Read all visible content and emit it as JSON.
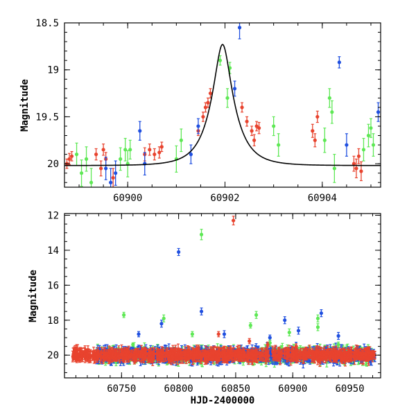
{
  "chart_data": [
    {
      "name": "zoom-panel",
      "type": "scatter",
      "title": "",
      "xlabel": "",
      "ylabel": "Magnitude",
      "xlim": [
        60898.7,
        60905.2
      ],
      "ylim": [
        20.25,
        18.5
      ],
      "y_inverted": true,
      "x_ticks": [
        60900,
        60902,
        60904
      ],
      "x_tick_labels": [
        "60900",
        "60902",
        "60904"
      ],
      "y_ticks": [
        18.5,
        19,
        19.5,
        20
      ],
      "y_tick_labels": [
        "18.5",
        "19",
        "19.5",
        "20"
      ],
      "model_curve": {
        "type": "single-lens microlensing",
        "color": "#000000",
        "t0": 60901.95,
        "peak_mag": 18.73,
        "base_mag": 20.02,
        "tE": 0.47
      },
      "series": [
        {
          "name": "red",
          "color": "#e8432e",
          "points": [
            [
              60898.75,
              20.0,
              0.05
            ],
            [
              60898.8,
              19.95,
              0.06
            ],
            [
              60898.85,
              19.92,
              0.05
            ],
            [
              60899.35,
              19.9,
              0.06
            ],
            [
              60899.45,
              20.05,
              0.08
            ],
            [
              60899.5,
              19.85,
              0.06
            ],
            [
              60899.55,
              19.95,
              0.07
            ],
            [
              60899.7,
              20.15,
              0.1
            ],
            [
              60900.35,
              19.9,
              0.07
            ],
            [
              60900.45,
              19.85,
              0.06
            ],
            [
              60900.55,
              19.9,
              0.06
            ],
            [
              60900.65,
              19.88,
              0.06
            ],
            [
              60900.7,
              19.82,
              0.05
            ],
            [
              60901.45,
              19.65,
              0.05
            ],
            [
              60901.55,
              19.5,
              0.05
            ],
            [
              60901.6,
              19.4,
              0.05
            ],
            [
              60901.65,
              19.35,
              0.05
            ],
            [
              60901.7,
              19.25,
              0.05
            ],
            [
              60902.35,
              19.4,
              0.05
            ],
            [
              60902.45,
              19.55,
              0.05
            ],
            [
              60902.55,
              19.65,
              0.05
            ],
            [
              60902.6,
              19.75,
              0.06
            ],
            [
              60902.65,
              19.6,
              0.05
            ],
            [
              60902.7,
              19.62,
              0.06
            ],
            [
              60903.8,
              19.65,
              0.07
            ],
            [
              60903.85,
              19.75,
              0.07
            ],
            [
              60903.9,
              19.5,
              0.06
            ],
            [
              60904.65,
              20.0,
              0.08
            ],
            [
              60904.7,
              20.05,
              0.1
            ],
            [
              60904.75,
              19.92,
              0.08
            ],
            [
              60904.8,
              20.08,
              0.1
            ]
          ]
        },
        {
          "name": "green",
          "color": "#5ee855",
          "points": [
            [
              60898.95,
              19.9,
              0.12
            ],
            [
              60899.05,
              20.1,
              0.14
            ],
            [
              60899.15,
              19.95,
              0.13
            ],
            [
              60899.25,
              20.2,
              0.15
            ],
            [
              60899.85,
              19.95,
              0.12
            ],
            [
              60899.95,
              19.85,
              0.12
            ],
            [
              60900.0,
              20.0,
              0.14
            ],
            [
              60900.05,
              19.85,
              0.1
            ],
            [
              60901.0,
              19.95,
              0.14
            ],
            [
              60901.1,
              19.75,
              0.12
            ],
            [
              60901.9,
              18.9,
              0.05
            ],
            [
              60902.05,
              19.3,
              0.1
            ],
            [
              60902.1,
              18.98,
              0.06
            ],
            [
              60903.0,
              19.6,
              0.1
            ],
            [
              60903.1,
              19.8,
              0.12
            ],
            [
              60904.05,
              19.75,
              0.13
            ],
            [
              60904.15,
              19.3,
              0.1
            ],
            [
              60904.2,
              19.45,
              0.12
            ],
            [
              60904.25,
              20.05,
              0.15
            ],
            [
              60904.85,
              19.85,
              0.12
            ],
            [
              60904.95,
              19.7,
              0.12
            ],
            [
              60905.0,
              19.62,
              0.1
            ],
            [
              60905.05,
              19.8,
              0.12
            ]
          ]
        },
        {
          "name": "blue",
          "color": "#1f4fe0",
          "points": [
            [
              60899.55,
              20.05,
              0.12
            ],
            [
              60899.65,
              20.2,
              0.15
            ],
            [
              60899.75,
              20.1,
              0.13
            ],
            [
              60900.25,
              19.65,
              0.1
            ],
            [
              60900.35,
              20.0,
              0.12
            ],
            [
              60901.3,
              19.9,
              0.1
            ],
            [
              60901.45,
              19.6,
              0.08
            ],
            [
              60902.2,
              19.2,
              0.08
            ],
            [
              60902.3,
              18.55,
              0.12
            ],
            [
              60904.35,
              18.92,
              0.06
            ],
            [
              60904.5,
              19.8,
              0.12
            ],
            [
              60905.15,
              19.45,
              0.1
            ]
          ]
        }
      ]
    },
    {
      "name": "full-panel",
      "type": "scatter",
      "title": "",
      "xlabel": "HJD-2400000",
      "ylabel": "Magnitude",
      "xlim": [
        60700,
        60977
      ],
      "ylim": [
        21.3,
        11.9
      ],
      "y_inverted": true,
      "x_ticks": [
        60750,
        60800,
        60850,
        60900,
        60950
      ],
      "x_tick_labels": [
        "60750",
        "60800",
        "60850",
        "60900",
        "60950"
      ],
      "y_ticks": [
        12,
        14,
        16,
        18,
        20
      ],
      "y_tick_labels": [
        "12",
        "14",
        "16",
        "18",
        "20"
      ],
      "dense_baseline": {
        "x_start": 60728,
        "x_end": 60972,
        "mag": 20.0,
        "scatter": 0.4,
        "red_start": 60707
      },
      "series": [
        {
          "name": "blue",
          "color": "#1f4fe0",
          "points": [
            [
              60800,
              14.1,
              0.2
            ],
            [
              60785,
              18.2,
              0.2
            ],
            [
              60820,
              17.5,
              0.2
            ],
            [
              60840,
              18.8,
              0.2
            ],
            [
              60880,
              19.0,
              0.15
            ],
            [
              60893,
              18.0,
              0.2
            ],
            [
              60905,
              18.6,
              0.2
            ],
            [
              60925,
              17.6,
              0.2
            ],
            [
              60765,
              18.8,
              0.15
            ],
            [
              60940,
              18.9,
              0.2
            ]
          ]
        },
        {
          "name": "green",
          "color": "#5ee855",
          "points": [
            [
              60820,
              13.1,
              0.3
            ],
            [
              60752,
              17.7,
              0.15
            ],
            [
              60787,
              17.9,
              0.2
            ],
            [
              60812,
              18.8,
              0.15
            ],
            [
              60868,
              17.7,
              0.2
            ],
            [
              60863,
              18.3,
              0.15
            ],
            [
              60880,
              19.3,
              0.15
            ],
            [
              60897,
              18.7,
              0.2
            ],
            [
              60922,
              17.9,
              0.2
            ],
            [
              60922,
              18.4,
              0.2
            ],
            [
              60940,
              19.4,
              0.15
            ],
            [
              60760,
              19.4,
              0.1
            ]
          ]
        },
        {
          "name": "red",
          "color": "#e8432e",
          "points": [
            [
              60848,
              12.3,
              0.25
            ],
            [
              60835,
              18.8,
              0.15
            ],
            [
              60862,
              19.2,
              0.15
            ],
            [
              60878,
              19.4,
              0.15
            ],
            [
              60903,
              19.5,
              0.15
            ]
          ]
        }
      ]
    }
  ]
}
